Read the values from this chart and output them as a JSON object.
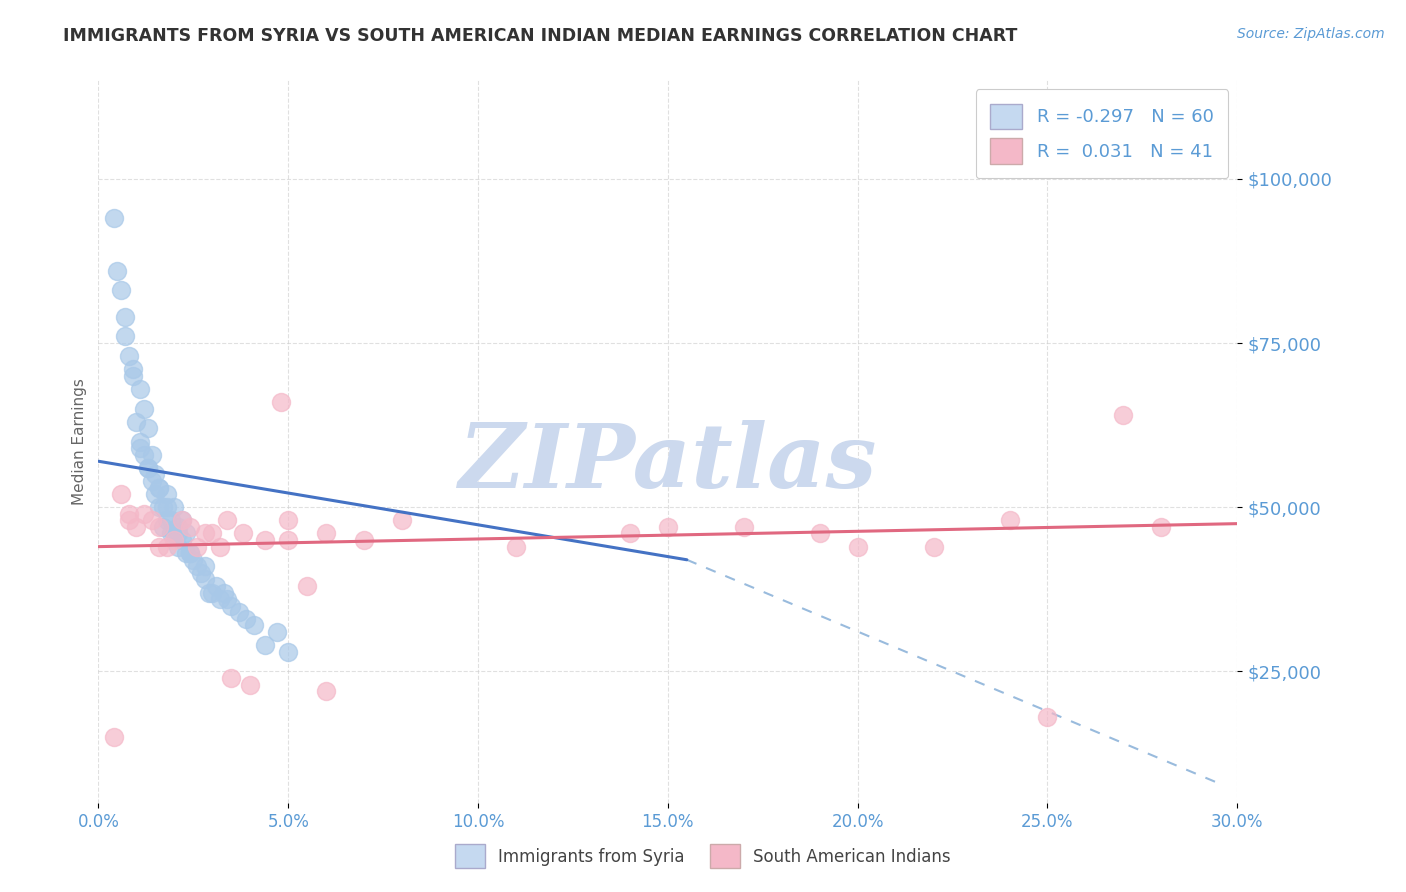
{
  "title": "IMMIGRANTS FROM SYRIA VS SOUTH AMERICAN INDIAN MEDIAN EARNINGS CORRELATION CHART",
  "source_text": "Source: ZipAtlas.com",
  "ylabel": "Median Earnings",
  "xlim": [
    0.0,
    0.3
  ],
  "ylim": [
    5000,
    115000
  ],
  "yticks": [
    25000,
    50000,
    75000,
    100000
  ],
  "ytick_labels": [
    "$25,000",
    "$50,000",
    "$75,000",
    "$100,000"
  ],
  "xticks": [
    0.0,
    0.05,
    0.1,
    0.15,
    0.2,
    0.25,
    0.3
  ],
  "xtick_labels": [
    "0.0%",
    "5.0%",
    "10.0%",
    "15.0%",
    "20.0%",
    "25.0%",
    "30.0%"
  ],
  "grid_color": "#cccccc",
  "watermark_text": "ZIPatlas",
  "watermark_color": "#ccd9ee",
  "syria_color": "#a8c8e8",
  "sai_color": "#f4b8c8",
  "syria_line_color": "#4472c4",
  "sai_line_color": "#e06880",
  "dashed_line_color": "#99bbdd",
  "legend_syria_label": "Immigrants from Syria",
  "legend_sai_label": "South American Indians",
  "syria_R": -0.297,
  "syria_N": 60,
  "sai_R": 0.031,
  "sai_N": 41,
  "syria_scatter_x": [
    0.004,
    0.006,
    0.007,
    0.008,
    0.009,
    0.01,
    0.011,
    0.011,
    0.012,
    0.012,
    0.013,
    0.013,
    0.014,
    0.014,
    0.015,
    0.015,
    0.016,
    0.016,
    0.017,
    0.017,
    0.018,
    0.018,
    0.019,
    0.019,
    0.02,
    0.02,
    0.021,
    0.021,
    0.022,
    0.022,
    0.023,
    0.023,
    0.024,
    0.025,
    0.026,
    0.027,
    0.028,
    0.029,
    0.03,
    0.031,
    0.032,
    0.034,
    0.035,
    0.037,
    0.039,
    0.041,
    0.044,
    0.047,
    0.05,
    0.005,
    0.007,
    0.009,
    0.011,
    0.013,
    0.016,
    0.018,
    0.021,
    0.024,
    0.028,
    0.033
  ],
  "syria_scatter_y": [
    94000,
    83000,
    79000,
    73000,
    70000,
    63000,
    68000,
    60000,
    65000,
    58000,
    56000,
    62000,
    58000,
    54000,
    55000,
    52000,
    50000,
    53000,
    50000,
    47000,
    52000,
    48000,
    48000,
    46000,
    50000,
    46000,
    47000,
    44000,
    45000,
    48000,
    46000,
    43000,
    43000,
    42000,
    41000,
    40000,
    39000,
    37000,
    37000,
    38000,
    36000,
    36000,
    35000,
    34000,
    33000,
    32000,
    29000,
    31000,
    28000,
    86000,
    76000,
    71000,
    59000,
    56000,
    53000,
    50000,
    46000,
    43000,
    41000,
    37000
  ],
  "sai_scatter_x": [
    0.004,
    0.008,
    0.01,
    0.012,
    0.016,
    0.02,
    0.022,
    0.026,
    0.03,
    0.034,
    0.038,
    0.044,
    0.05,
    0.055,
    0.06,
    0.006,
    0.014,
    0.018,
    0.024,
    0.028,
    0.032,
    0.04,
    0.05,
    0.06,
    0.07,
    0.08,
    0.11,
    0.14,
    0.17,
    0.2,
    0.24,
    0.27,
    0.15,
    0.19,
    0.22,
    0.25,
    0.28,
    0.008,
    0.016,
    0.035,
    0.048
  ],
  "sai_scatter_y": [
    15000,
    48000,
    47000,
    49000,
    47000,
    45000,
    48000,
    44000,
    46000,
    48000,
    46000,
    45000,
    48000,
    38000,
    46000,
    52000,
    48000,
    44000,
    47000,
    46000,
    44000,
    23000,
    45000,
    22000,
    45000,
    48000,
    44000,
    46000,
    47000,
    44000,
    48000,
    64000,
    47000,
    46000,
    44000,
    18000,
    47000,
    49000,
    44000,
    24000,
    66000
  ],
  "syria_line_x0": 0.0,
  "syria_line_x1": 0.155,
  "syria_line_y0": 57000,
  "syria_line_y1": 42000,
  "sai_line_x0": 0.0,
  "sai_line_x1": 0.3,
  "sai_line_y0": 44000,
  "sai_line_y1": 47500,
  "dash_line_x0": 0.155,
  "dash_line_x1": 0.295,
  "dash_line_y0": 42000,
  "dash_line_y1": 8000,
  "background_color": "#ffffff",
  "title_color": "#333333",
  "tick_color": "#5b9bd5",
  "source_color": "#5b9bd5",
  "marker_size": 13,
  "legend_box_color": "#c5d9f0",
  "legend_box_color2": "#f4b8c8"
}
